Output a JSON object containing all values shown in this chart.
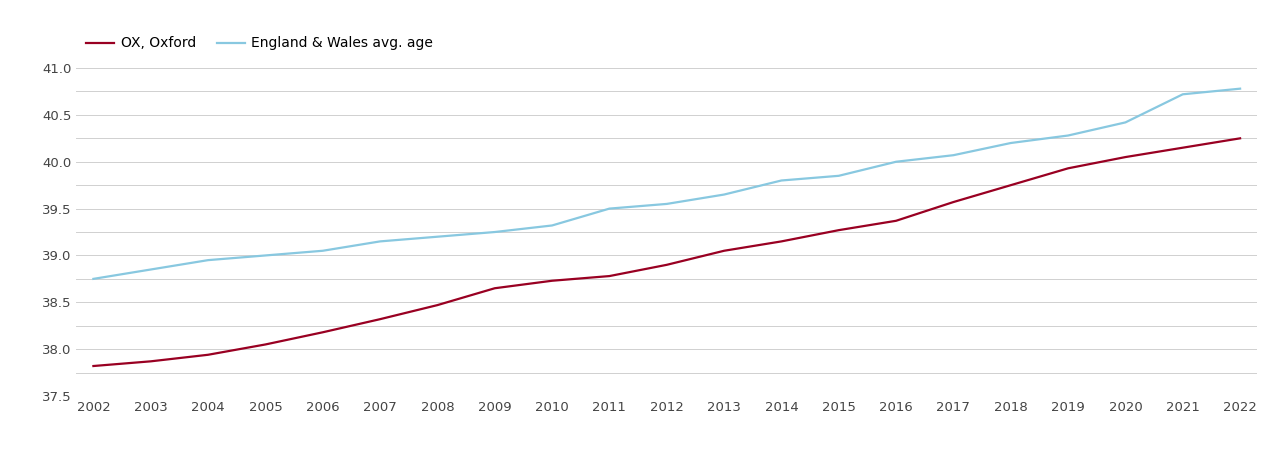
{
  "years": [
    2002,
    2003,
    2004,
    2005,
    2006,
    2007,
    2008,
    2009,
    2010,
    2011,
    2012,
    2013,
    2014,
    2015,
    2016,
    2017,
    2018,
    2019,
    2020,
    2021,
    2022
  ],
  "oxford": [
    37.82,
    37.87,
    37.94,
    38.05,
    38.18,
    38.32,
    38.47,
    38.65,
    38.73,
    38.78,
    38.9,
    39.05,
    39.15,
    39.27,
    39.37,
    39.57,
    39.75,
    39.93,
    40.05,
    40.15,
    40.25
  ],
  "england_wales": [
    38.75,
    38.85,
    38.95,
    39.0,
    39.05,
    39.15,
    39.2,
    39.25,
    39.32,
    39.5,
    39.55,
    39.65,
    39.8,
    39.85,
    40.0,
    40.07,
    40.2,
    40.28,
    40.42,
    40.72,
    40.78
  ],
  "oxford_color": "#990022",
  "ew_color": "#88C8E0",
  "oxford_label": "OX, Oxford",
  "ew_label": "England & Wales avg. age",
  "ylim": [
    37.5,
    41.15
  ],
  "yticks_labeled": [
    37.5,
    38.0,
    38.5,
    39.0,
    39.5,
    40.0,
    40.5,
    41.0
  ],
  "yticks_minor_step": 0.1,
  "grid_color": "#d0d0d0",
  "line_width": 1.6,
  "figsize": [
    12.7,
    4.5
  ],
  "dpi": 100
}
